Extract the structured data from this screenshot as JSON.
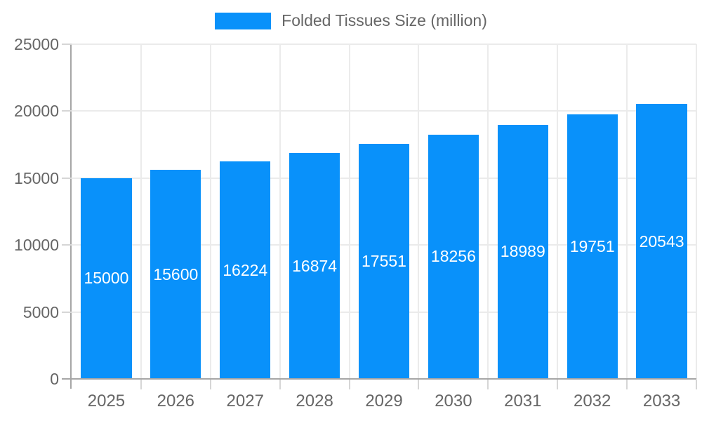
{
  "legend": {
    "label": "Folded Tissues Size (million)"
  },
  "chart_data": {
    "type": "bar",
    "title": "Folded Tissues Size (million)",
    "categories": [
      "2025",
      "2026",
      "2027",
      "2028",
      "2029",
      "2030",
      "2031",
      "2032",
      "2033"
    ],
    "series": [
      {
        "name": "Folded Tissues Size (million)",
        "values": [
          15000,
          15600,
          16224,
          16874,
          17551,
          18256,
          18989,
          19751,
          20543
        ]
      }
    ],
    "xlabel": "",
    "ylabel": "",
    "ylim": [
      0,
      25000
    ],
    "yticks": [
      0,
      5000,
      10000,
      15000,
      20000,
      25000
    ],
    "grid": true,
    "legend_position": "top-center",
    "value_labels_position": "inside-center",
    "colors": {
      "bar": "#0991fa",
      "axis_line": "#a6a6a6",
      "gridline": "#ebebeb",
      "tick": "#d6d6d6",
      "axis_text": "#666666",
      "bar_label_text": "#ffffff"
    }
  }
}
